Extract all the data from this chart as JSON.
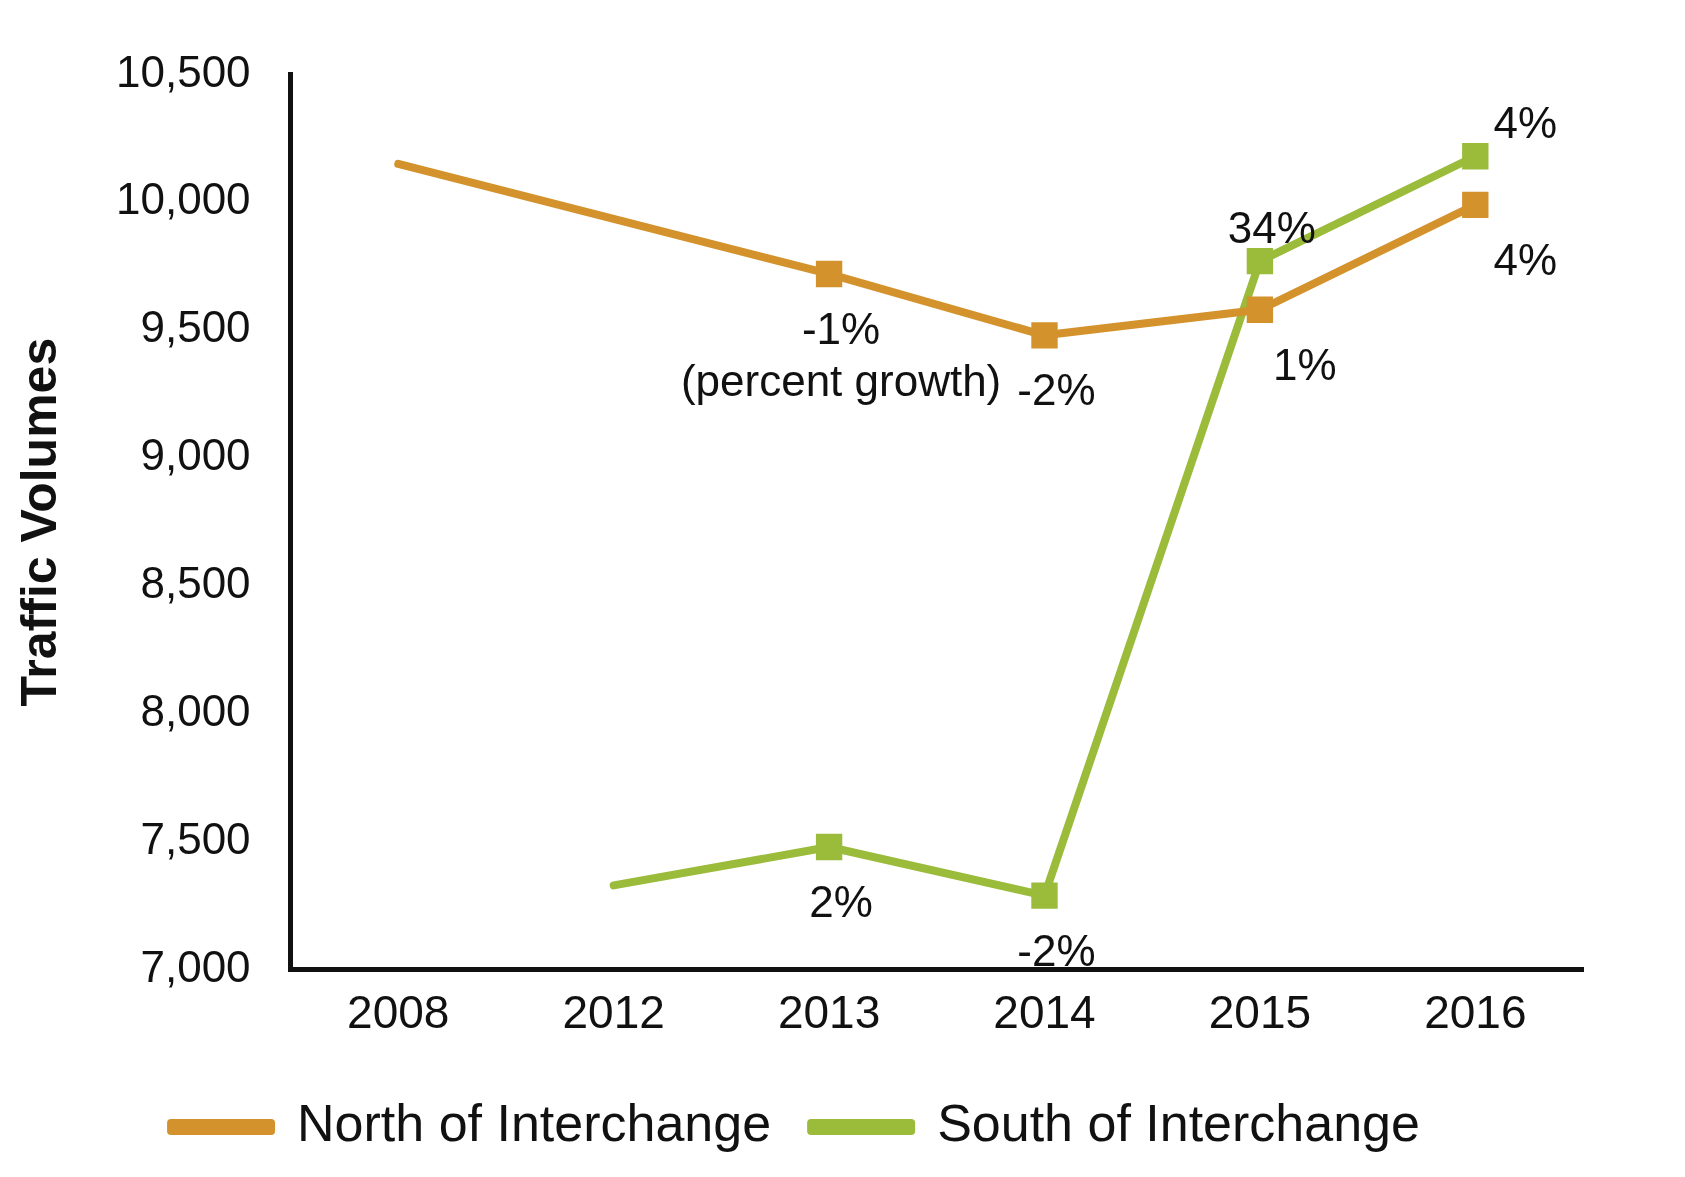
{
  "chart_data": {
    "type": "line",
    "ylabel": "Traffic Volumes",
    "categories": [
      "2008",
      "2012",
      "2013",
      "2014",
      "2015",
      "2016"
    ],
    "series": [
      {
        "name": "North of Interchange",
        "color": "#d4922c",
        "values": [
          10150,
          null,
          9720,
          9480,
          9580,
          9990
        ]
      },
      {
        "name": "South of Interchange",
        "color": "#9bbb3b",
        "values": [
          null,
          7330,
          7480,
          7290,
          9770,
          10180
        ]
      }
    ],
    "ylim": [
      7000,
      10500
    ],
    "yticks": [
      {
        "value": 7000,
        "label": "7,000"
      },
      {
        "value": 7500,
        "label": "7,500"
      },
      {
        "value": 8000,
        "label": "8,000"
      },
      {
        "value": 8500,
        "label": "8,500"
      },
      {
        "value": 9000,
        "label": "9,000"
      },
      {
        "value": 9500,
        "label": "9,500"
      },
      {
        "value": 10000,
        "label": "10,000"
      },
      {
        "value": 10500,
        "label": "10,500"
      }
    ],
    "annotations": [
      {
        "text": "-1%",
        "x": "2013",
        "y": 9720
      },
      "(percent growth)",
      {
        "text": "-2%",
        "x": "2014",
        "y": 9480
      },
      {
        "text": "1%",
        "x": "2015",
        "y": 9580
      },
      {
        "text": "4%",
        "x": "2016",
        "y": 9990
      },
      {
        "text": "2%",
        "x": "2013",
        "y": 7480
      },
      {
        "text": "-2%",
        "x": "2014",
        "y": 7290
      },
      {
        "text": "34%",
        "x": "2015",
        "y": 9770
      },
      {
        "text": "4%",
        "x": "2016",
        "y": 10180
      }
    ],
    "marker": "square",
    "line_style": "solid",
    "grid": false,
    "legend": "bottom"
  }
}
